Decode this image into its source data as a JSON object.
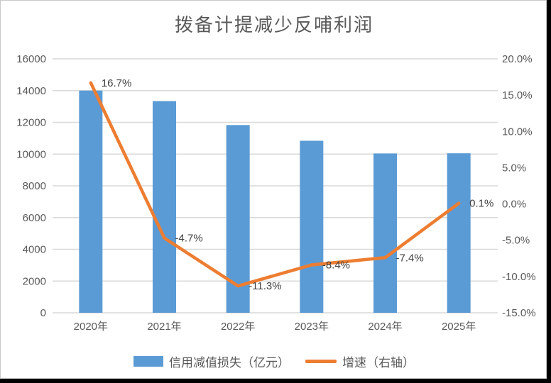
{
  "title": "拨备计提减少反哺利润",
  "colors": {
    "bar_blue": "#5B9BD5",
    "line_orange": "#ED7D31",
    "grid": "#D9D9D9",
    "axis_text": "#595959",
    "data_label_text": "#404040",
    "title_text": "#595959",
    "chart_border": "#C9C9C9",
    "frame": "#000000",
    "background": "#FFFFFF"
  },
  "legend": {
    "items": [
      {
        "swatch": "bar",
        "color": "#5B9BD5",
        "label": "信用减值损失（亿元）"
      },
      {
        "swatch": "line",
        "color": "#ED7D31",
        "label": "增速（右轴）"
      }
    ],
    "position": "bottom"
  },
  "chart_data": {
    "type": "bar",
    "subtype": "combo-bar-line-dual-axis",
    "title": "拨备计提减少反哺利润",
    "categories": [
      "2020年",
      "2021年",
      "2022年",
      "2023年",
      "2024年",
      "2025年"
    ],
    "series": [
      {
        "name": "信用减值损失（亿元）",
        "type": "bar",
        "axis": "left",
        "color": "#5B9BD5",
        "values": [
          14000,
          13340,
          11830,
          10840,
          10040,
          10050
        ]
      },
      {
        "name": "增速（右轴）",
        "type": "line",
        "axis": "right",
        "color": "#ED7D31",
        "values_pct": [
          16.7,
          -4.7,
          -11.3,
          -8.4,
          -7.4,
          0.1
        ],
        "labels": [
          "16.7%",
          "-4.7%",
          "-11.3%",
          "-8.4%",
          "-7.4%",
          "0.1%"
        ]
      }
    ],
    "left_axis": {
      "min": 0,
      "max": 16000,
      "step": 2000,
      "ticks": [
        "0",
        "2000",
        "4000",
        "6000",
        "8000",
        "10000",
        "12000",
        "14000",
        "16000"
      ]
    },
    "right_axis": {
      "min": -15,
      "max": 20,
      "step": 5,
      "ticks": [
        "-15.0%",
        "-10.0%",
        "-5.0%",
        "0.0%",
        "5.0%",
        "10.0%",
        "15.0%",
        "20.0%"
      ]
    },
    "grid": "horizontal",
    "legend_position": "bottom",
    "xlabel": "",
    "ylabel_left": "信用减值损失（亿元）",
    "ylabel_right": "增速"
  }
}
